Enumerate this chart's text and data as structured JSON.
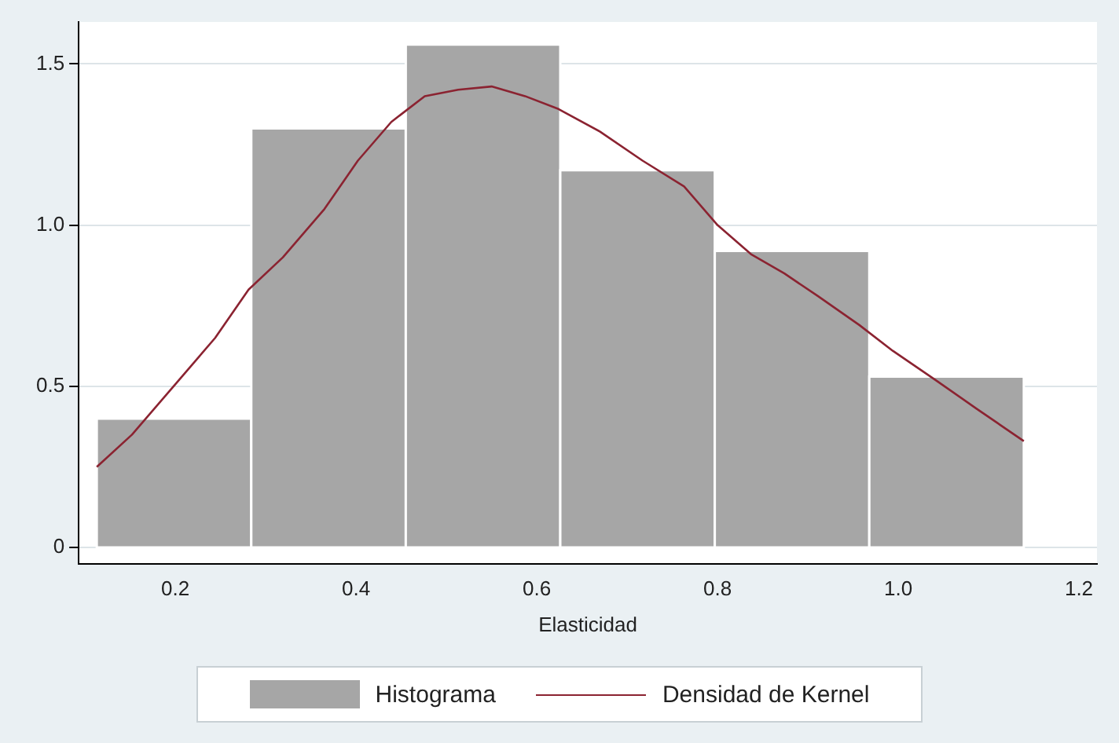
{
  "chart_data": {
    "type": "histogram",
    "xlabel": "Elasticidad",
    "legend": "bottom",
    "grid": "y",
    "marker": "none",
    "xlim": [
      0.093,
      1.22
    ],
    "ylim": [
      -0.05,
      1.63
    ],
    "xticks": [
      0.2,
      0.4,
      0.6,
      0.8,
      {
        "value": 1,
        "label": "1.0"
      },
      1.2
    ],
    "yticks": [
      0,
      0.5,
      {
        "value": 1,
        "label": "1.0"
      },
      1.5
    ],
    "series": [
      {
        "name": "Histograma",
        "color": "#a6a6a6",
        "bins": [
          0.113,
          0.284,
          0.455,
          0.626,
          0.797,
          0.968,
          1.139
        ],
        "values": [
          0.4,
          1.3,
          1.56,
          1.17,
          0.92,
          0.53
        ]
      },
      {
        "name": "Densidad de Kernel",
        "type": "line",
        "color": "#8b2331",
        "x": [
          0.113,
          0.152,
          0.198,
          0.244,
          0.281,
          0.319,
          0.365,
          0.402,
          0.439,
          0.476,
          0.513,
          0.55,
          0.587,
          0.624,
          0.67,
          0.717,
          0.763,
          0.8,
          0.837,
          0.874,
          0.911,
          0.957,
          0.994,
          1.041,
          1.087,
          1.139
        ],
        "values": [
          0.25,
          0.35,
          0.5,
          0.65,
          0.8,
          0.9,
          1.05,
          1.2,
          1.32,
          1.4,
          1.42,
          1.43,
          1.4,
          1.36,
          1.29,
          1.2,
          1.12,
          1.0,
          0.91,
          0.85,
          0.78,
          0.69,
          0.61,
          0.52,
          0.43,
          0.33
        ]
      }
    ]
  }
}
